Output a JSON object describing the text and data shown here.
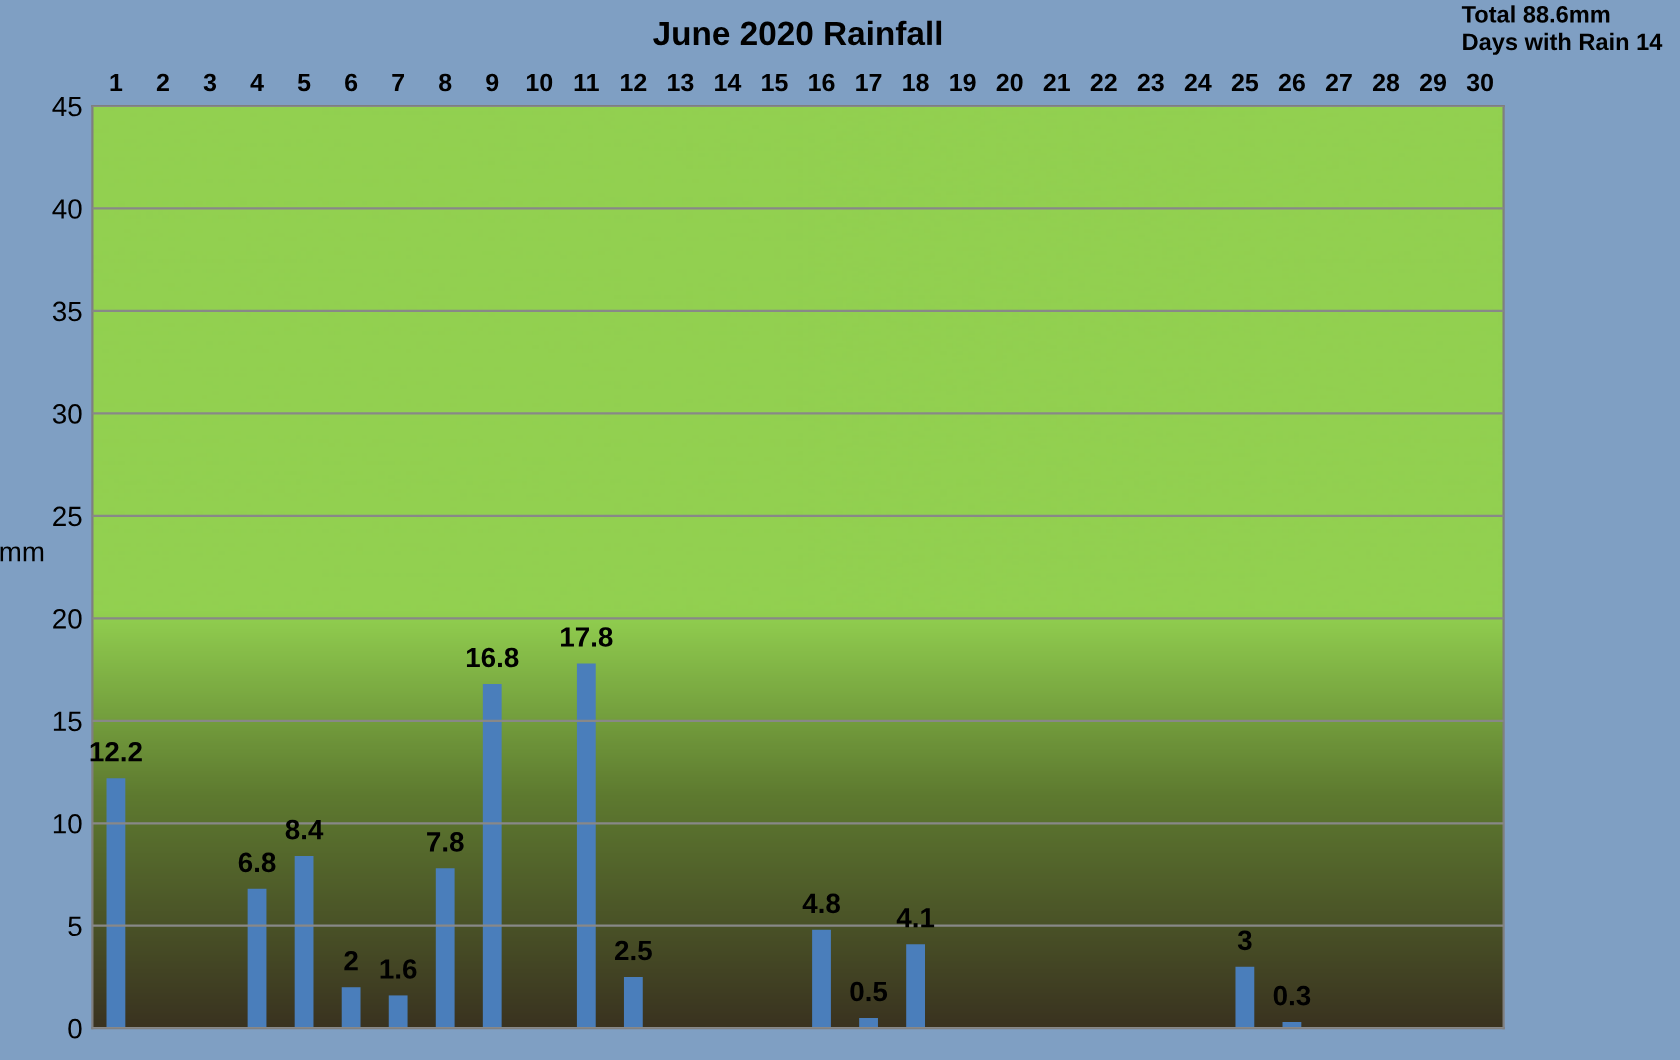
{
  "chart_data": {
    "type": "bar",
    "title": "June 2020 Rainfall",
    "ylabel": "mm",
    "categories": [
      "1",
      "2",
      "3",
      "4",
      "5",
      "6",
      "7",
      "8",
      "9",
      "10",
      "11",
      "12",
      "13",
      "14",
      "15",
      "16",
      "17",
      "18",
      "19",
      "20",
      "21",
      "22",
      "23",
      "24",
      "25",
      "26",
      "27",
      "28",
      "29",
      "30"
    ],
    "values": [
      12.2,
      0,
      0,
      6.8,
      8.4,
      2,
      1.6,
      7.8,
      16.8,
      0,
      17.8,
      2.5,
      0,
      0,
      0,
      4.8,
      0.5,
      4.1,
      0,
      0,
      0,
      0,
      0,
      0,
      3,
      0.3,
      0,
      0,
      0,
      0
    ],
    "value_labels": [
      "12.2",
      null,
      null,
      "6.8",
      "8.4",
      "2",
      "1.6",
      "7.8",
      "16.8",
      null,
      "17.8",
      "2.5",
      null,
      null,
      null,
      "4.8",
      "0.5",
      "4.1",
      null,
      null,
      null,
      null,
      null,
      null,
      "3",
      "0.3",
      null,
      null,
      null,
      null
    ],
    "color": "#4a7ebb",
    "ylim": [
      0,
      45
    ],
    "yticks": [
      0,
      5,
      10,
      15,
      20,
      25,
      30,
      35,
      40,
      45
    ],
    "grid": "y",
    "legend": false,
    "annotations": [
      "Total 88.6mm",
      "Days with Rain 14"
    ]
  }
}
